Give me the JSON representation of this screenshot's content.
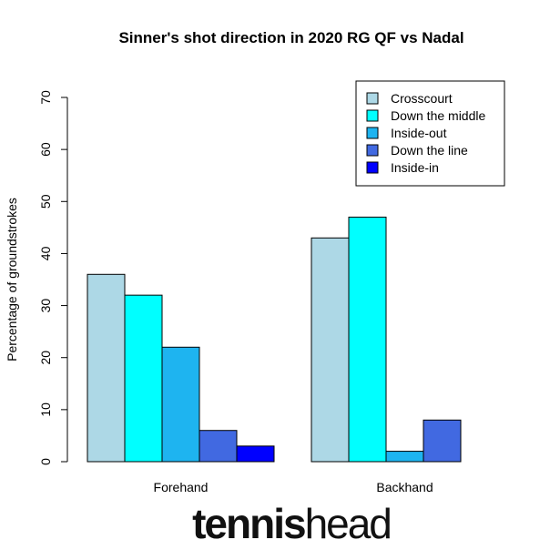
{
  "chart_data": {
    "type": "bar",
    "title": "Sinner's shot direction in 2020 RG QF vs Nadal",
    "ylabel": "Percentage of groundstrokes",
    "xlabel": "",
    "ylim": [
      0,
      70
    ],
    "yticks": [
      "0",
      "10",
      "20",
      "30",
      "40",
      "50",
      "60",
      "70"
    ],
    "categories": [
      "Forehand",
      "Backhand"
    ],
    "legend_position": "top-right",
    "grid": false,
    "series": [
      {
        "name": "Crosscourt",
        "color": "#add8e6",
        "values": [
          36,
          43
        ]
      },
      {
        "name": "Down the middle",
        "color": "#00ffff",
        "values": [
          32,
          47
        ]
      },
      {
        "name": "Inside-out",
        "color": "#1eb4f0",
        "values": [
          22,
          2
        ]
      },
      {
        "name": "Down the line",
        "color": "#4169e1",
        "values": [
          6,
          8
        ]
      },
      {
        "name": "Inside-in",
        "color": "#0000ff",
        "values": [
          3,
          0
        ]
      }
    ]
  },
  "logo": {
    "part1": "tennis",
    "part2": "head"
  }
}
